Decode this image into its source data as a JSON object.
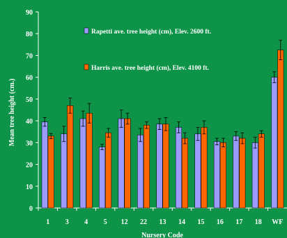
{
  "chart_data": {
    "type": "bar",
    "title": "",
    "xlabel": "Nursery Code",
    "ylabel": "Mean tree height (cm.)",
    "ylim": [
      0,
      90
    ],
    "yticks": [
      0,
      10,
      20,
      30,
      40,
      50,
      60,
      70,
      80,
      90
    ],
    "grid": false,
    "legend_position": "upper-left inside plot",
    "categories": [
      "1",
      "3",
      "4",
      "5",
      "12",
      "22",
      "13",
      "14",
      "15",
      "16",
      "17",
      "18",
      "WF"
    ],
    "series": [
      {
        "name": "Rapetti ave. tree height (cm), Elev. 2600 ft.",
        "color": "#9a9aff",
        "values": [
          39.5,
          34,
          41,
          28,
          41,
          33.5,
          38.5,
          37,
          34,
          30.5,
          33,
          30,
          60
        ],
        "errors": [
          2,
          3.5,
          3.5,
          1.2,
          4,
          3,
          2.5,
          2.5,
          3,
          1.5,
          2,
          2.5,
          2.5
        ]
      },
      {
        "name": "Harris ave. tree height (cm), Elev. 4100 ft.",
        "color": "#ff6600",
        "values": [
          33,
          47,
          43.5,
          34.5,
          41,
          38,
          38.5,
          32,
          37,
          30,
          32,
          34,
          72.5
        ],
        "errors": [
          1.2,
          3.5,
          4.5,
          2,
          2.5,
          1.5,
          3,
          2.5,
          3,
          2,
          2.5,
          1.5,
          4.5
        ]
      }
    ]
  }
}
